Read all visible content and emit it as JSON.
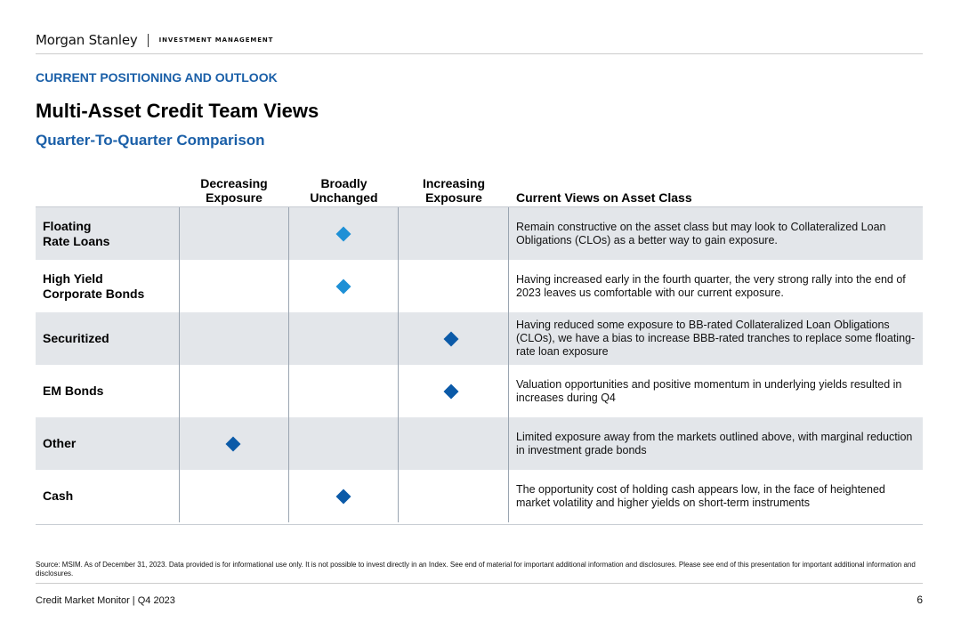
{
  "header": {
    "brand": "Morgan Stanley",
    "division": "INVESTMENT MANAGEMENT"
  },
  "section_label": "CURRENT POSITIONING AND OUTLOOK",
  "title": "Multi-Asset Credit Team Views",
  "subtitle": "Quarter-To-Quarter Comparison",
  "columns": {
    "decreasing": {
      "line1": "Decreasing",
      "line2": "Exposure"
    },
    "unchanged": {
      "line1": "Broadly",
      "line2": "Unchanged"
    },
    "increasing": {
      "line1": "Increasing",
      "line2": "Exposure"
    },
    "views": "Current Views on Asset Class"
  },
  "colors": {
    "light_blue": "#1e90d6",
    "dark_blue": "#0b5aa8",
    "accent": "#1a5fa8",
    "row_shade": "#e3e6ea"
  },
  "rows": [
    {
      "label_line1": "Floating",
      "label_line2": "Rate Loans",
      "position": "unchanged",
      "marker_color": "#1e90d6",
      "view": "Remain constructive on the asset class but may look to Collateralized Loan Obligations (CLOs) as a better way to gain exposure."
    },
    {
      "label_line1": "High Yield",
      "label_line2": "Corporate Bonds",
      "position": "unchanged",
      "marker_color": "#1e90d6",
      "view": "Having increased early in the fourth quarter, the very strong rally into the end of 2023 leaves us comfortable with our current exposure."
    },
    {
      "label_line1": "Securitized",
      "label_line2": "",
      "position": "increasing",
      "marker_color": "#0b5aa8",
      "view": "Having reduced some exposure to BB-rated Collateralized Loan Obligations (CLOs), we have a bias to increase BBB-rated tranches to replace some floating-rate loan exposure"
    },
    {
      "label_line1": "EM Bonds",
      "label_line2": "",
      "position": "increasing",
      "marker_color": "#0b5aa8",
      "view": "Valuation opportunities and positive momentum in underlying yields resulted in increases during Q4"
    },
    {
      "label_line1": "Other",
      "label_line2": "",
      "position": "decreasing",
      "marker_color": "#0b5aa8",
      "view": "Limited exposure away from the markets outlined above, with marginal reduction in investment grade bonds"
    },
    {
      "label_line1": "Cash",
      "label_line2": "",
      "position": "unchanged",
      "marker_color": "#0b5aa8",
      "view": "The opportunity cost of holding cash appears low, in the face of heightened market volatility and higher yields on short-term instruments"
    }
  ],
  "source_note": "Source: MSIM. As of December 31, 2023. Data provided is for informational use only. It is not possible to invest directly in an Index. See end of material for important additional information and disclosures. Please see end of this presentation for important additional information and disclosures.",
  "footer": {
    "left": "Credit Market Monitor | Q4 2023",
    "page": "6"
  }
}
